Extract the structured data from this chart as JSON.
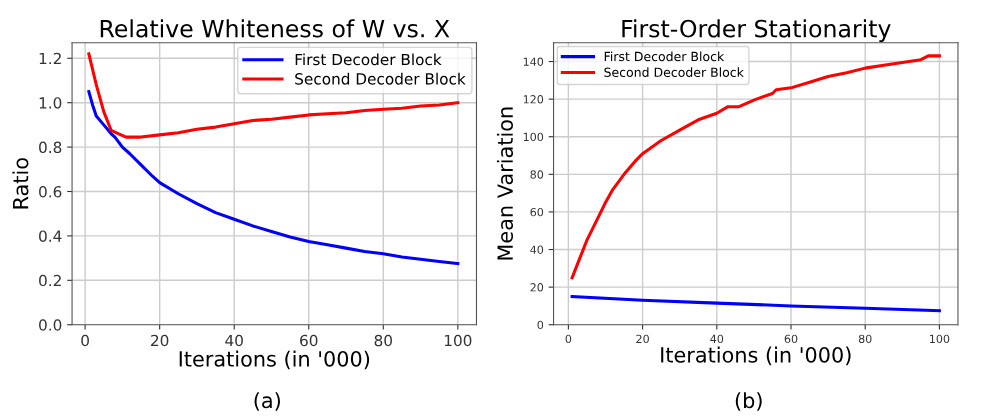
{
  "chart_data": [
    {
      "type": "line",
      "title": "Relative Whiteness of W vs. X",
      "xlabel": "Iterations (in '000)",
      "ylabel": "Ratio",
      "xlim": [
        -3.5,
        105
      ],
      "xticks": [
        0,
        20,
        40,
        60,
        80,
        100
      ],
      "ylim": [
        0,
        1.27
      ],
      "yticks": [
        {
          "value": 0,
          "label": "0.0"
        },
        0.2,
        0.4,
        0.6,
        0.8,
        {
          "value": 1,
          "label": "1.0"
        },
        1.2
      ],
      "grid": true,
      "legend": "top right",
      "annotations": [
        "(a)"
      ],
      "series": [
        {
          "name": "First Decoder Block",
          "color": "#0000ff",
          "x": [
            1,
            2,
            3,
            5,
            7,
            8,
            10,
            12,
            15,
            18,
            20,
            25,
            30,
            35,
            40,
            45,
            50,
            55,
            60,
            65,
            70,
            75,
            80,
            85,
            90,
            95,
            100
          ],
          "values": [
            1.05,
            0.99,
            0.94,
            0.9,
            0.86,
            0.845,
            0.8,
            0.77,
            0.72,
            0.67,
            0.64,
            0.59,
            0.545,
            0.505,
            0.475,
            0.445,
            0.42,
            0.395,
            0.375,
            0.36,
            0.345,
            0.33,
            0.32,
            0.305,
            0.295,
            0.285,
            0.275
          ]
        },
        {
          "name": "Second Decoder Block",
          "color": "#ff0000",
          "x": [
            1,
            3,
            5,
            7,
            9,
            11,
            15,
            20,
            25,
            30,
            35,
            40,
            45,
            50,
            55,
            60,
            65,
            70,
            75,
            80,
            85,
            90,
            95,
            100
          ],
          "values": [
            1.22,
            1.08,
            0.96,
            0.875,
            0.86,
            0.845,
            0.845,
            0.855,
            0.865,
            0.88,
            0.89,
            0.905,
            0.92,
            0.925,
            0.935,
            0.945,
            0.95,
            0.955,
            0.965,
            0.97,
            0.975,
            0.985,
            0.99,
            1.0
          ]
        }
      ]
    },
    {
      "type": "line",
      "title": "First-Order Stationarity",
      "xlabel": "Iterations (in '000)",
      "ylabel": "Mean Variation",
      "xlim": [
        -4,
        105
      ],
      "xticks": [
        0,
        20,
        40,
        60,
        80,
        100
      ],
      "ylim": [
        0,
        150
      ],
      "yticks": [
        0,
        20,
        40,
        60,
        80,
        100,
        120,
        140
      ],
      "grid": true,
      "legend": "top left",
      "annotations": [
        "(b)"
      ],
      "series": [
        {
          "name": "First Decoder Block",
          "color": "#0000ff",
          "x": [
            1,
            20,
            40,
            60,
            80,
            100
          ],
          "values": [
            15,
            13,
            11.5,
            10,
            8.8,
            7.5
          ]
        },
        {
          "name": "Second Decoder Block",
          "color": "#ff0000",
          "x": [
            1,
            3,
            5,
            8,
            10,
            12,
            15,
            18,
            20,
            25,
            30,
            35,
            40,
            43,
            46,
            50,
            55,
            56,
            60,
            65,
            70,
            75,
            80,
            85,
            90,
            95,
            97,
            100
          ],
          "values": [
            25,
            35,
            45,
            57,
            65,
            72,
            80,
            87,
            91,
            98,
            103.5,
            109,
            112.5,
            116,
            116,
            119.5,
            123,
            125,
            126,
            129,
            132,
            134,
            136.5,
            138,
            139.5,
            141,
            143,
            143
          ]
        }
      ]
    }
  ]
}
